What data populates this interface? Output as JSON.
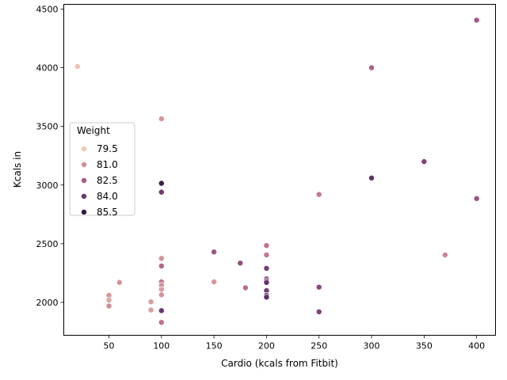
{
  "chart_data": {
    "type": "scatter",
    "title": "",
    "xlabel": "Cardio (kcals from Fitbit)",
    "ylabel": "Kcals in",
    "xlim": [
      7,
      418
    ],
    "ylim": [
      1720,
      4540
    ],
    "xticks": [
      50,
      100,
      150,
      200,
      250,
      300,
      350,
      400
    ],
    "yticks": [
      2000,
      2500,
      3000,
      3500,
      4000,
      4500
    ],
    "grid": false,
    "legend": {
      "title": "Weight",
      "placement": "center-left",
      "entries": [
        {
          "label": "79.5",
          "color": "#f0c9b5"
        },
        {
          "label": "81.0",
          "color": "#d38e9b"
        },
        {
          "label": "82.5",
          "color": "#a85985"
        },
        {
          "label": "84.0",
          "color": "#6b3870"
        },
        {
          "label": "85.5",
          "color": "#2d1e3e"
        }
      ]
    },
    "hue_range": [
      79.0,
      86.0
    ],
    "points": [
      {
        "x": 20,
        "y": 4010,
        "w": 79.2
      },
      {
        "x": 50,
        "y": 2060,
        "w": 80.6
      },
      {
        "x": 50,
        "y": 2020,
        "w": 80.0
      },
      {
        "x": 50,
        "y": 1970,
        "w": 80.8
      },
      {
        "x": 60,
        "y": 2170,
        "w": 80.6
      },
      {
        "x": 90,
        "y": 2005,
        "w": 80.3
      },
      {
        "x": 90,
        "y": 1935,
        "w": 80.3
      },
      {
        "x": 100,
        "y": 3565,
        "w": 80.5
      },
      {
        "x": 100,
        "y": 3015,
        "w": 85.8
      },
      {
        "x": 100,
        "y": 2940,
        "w": 84.0
      },
      {
        "x": 100,
        "y": 2375,
        "w": 80.6
      },
      {
        "x": 100,
        "y": 2310,
        "w": 82.0
      },
      {
        "x": 100,
        "y": 2175,
        "w": 81.5
      },
      {
        "x": 100,
        "y": 2145,
        "w": 80.8
      },
      {
        "x": 100,
        "y": 2110,
        "w": 80.3
      },
      {
        "x": 100,
        "y": 2065,
        "w": 80.6
      },
      {
        "x": 100,
        "y": 1930,
        "w": 84.3
      },
      {
        "x": 100,
        "y": 1830,
        "w": 81.6
      },
      {
        "x": 150,
        "y": 2430,
        "w": 82.8
      },
      {
        "x": 150,
        "y": 2175,
        "w": 80.5
      },
      {
        "x": 175,
        "y": 2335,
        "w": 83.0
      },
      {
        "x": 180,
        "y": 2125,
        "w": 81.8
      },
      {
        "x": 200,
        "y": 2485,
        "w": 81.6
      },
      {
        "x": 200,
        "y": 2405,
        "w": 81.5
      },
      {
        "x": 200,
        "y": 2290,
        "w": 84.0
      },
      {
        "x": 200,
        "y": 2200,
        "w": 84.3
      },
      {
        "x": 200,
        "y": 2185,
        "w": 83.6
      },
      {
        "x": 200,
        "y": 2170,
        "w": 84.5
      },
      {
        "x": 200,
        "y": 2100,
        "w": 84.0
      },
      {
        "x": 200,
        "y": 2060,
        "w": 84.5
      },
      {
        "x": 200,
        "y": 2045,
        "w": 84.8
      },
      {
        "x": 250,
        "y": 2920,
        "w": 81.4
      },
      {
        "x": 250,
        "y": 2130,
        "w": 83.3
      },
      {
        "x": 250,
        "y": 1920,
        "w": 83.6
      },
      {
        "x": 300,
        "y": 4000,
        "w": 82.3
      },
      {
        "x": 300,
        "y": 3060,
        "w": 84.6
      },
      {
        "x": 350,
        "y": 3200,
        "w": 83.6
      },
      {
        "x": 370,
        "y": 2405,
        "w": 81.0
      },
      {
        "x": 400,
        "y": 4405,
        "w": 82.6
      },
      {
        "x": 400,
        "y": 2885,
        "w": 82.8
      }
    ]
  }
}
